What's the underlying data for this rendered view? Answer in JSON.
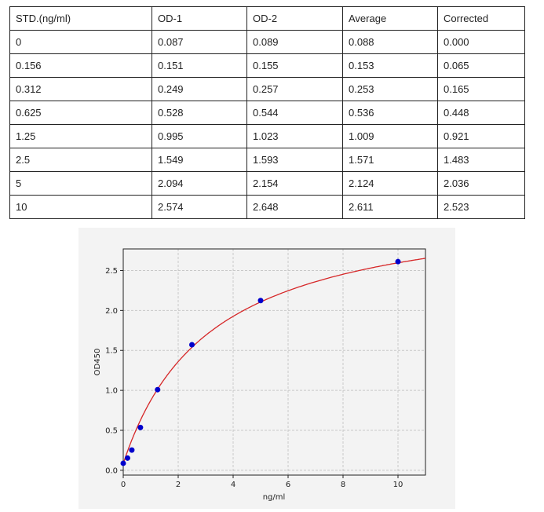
{
  "table": {
    "headers": [
      "STD.(ng/ml)",
      "OD-1",
      "OD-2",
      "Average",
      "Corrected"
    ],
    "rows": [
      [
        "0",
        "0.087",
        "0.089",
        "0.088",
        "0.000"
      ],
      [
        "0.156",
        "0.151",
        "0.155",
        "0.153",
        "0.065"
      ],
      [
        "0.312",
        "0.249",
        "0.257",
        "0.253",
        "0.165"
      ],
      [
        "0.625",
        "0.528",
        "0.544",
        "0.536",
        "0.448"
      ],
      [
        "1.25",
        "0.995",
        "1.023",
        "1.009",
        "0.921"
      ],
      [
        "2.5",
        "1.549",
        "1.593",
        "1.571",
        "1.483"
      ],
      [
        "5",
        "2.094",
        "2.154",
        "2.124",
        "2.036"
      ],
      [
        "10",
        "2.574",
        "2.648",
        "2.611",
        "2.523"
      ]
    ]
  },
  "chart_data": {
    "type": "scatter",
    "title": "",
    "xlabel": "ng/ml",
    "ylabel": "OD450",
    "xlim": [
      0,
      11
    ],
    "ylim": [
      -0.06,
      2.77
    ],
    "xticks": [
      "0",
      "2",
      "4",
      "6",
      "8",
      "10"
    ],
    "yticks": [
      "0.0",
      "0.5",
      "1.0",
      "1.5",
      "2.0",
      "2.5"
    ],
    "grid": true,
    "points": {
      "x": [
        0,
        0.156,
        0.312,
        0.625,
        1.25,
        2.5,
        5,
        10
      ],
      "y": [
        0.088,
        0.153,
        0.253,
        0.536,
        1.009,
        1.571,
        2.124,
        2.611
      ]
    },
    "point_color": "#0000cc",
    "curve_color": "#d62728",
    "fit_curve": true
  }
}
